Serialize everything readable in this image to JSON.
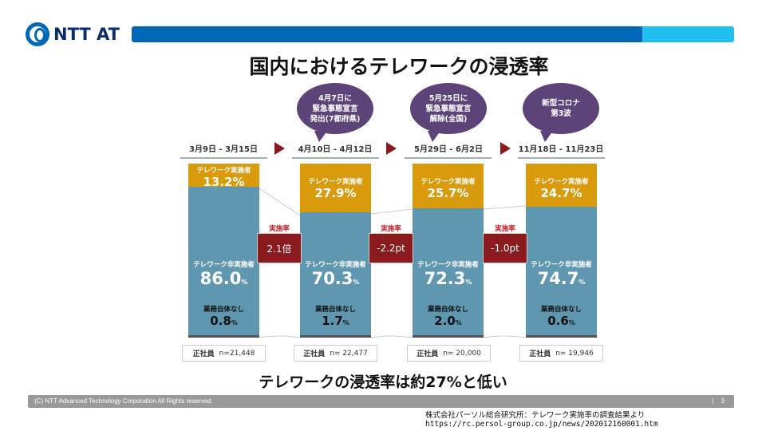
{
  "header": {
    "logo_text": "NTT AT",
    "title": "国内におけるテレワークの浸透率"
  },
  "colors": {
    "brand_blue": "#0068b7",
    "accent_cyan": "#1fc0f0",
    "telework": "#d99a0b",
    "non_telework": "#5f97b0",
    "rate_box": "#8b1a1f",
    "bubble": "#5c4479"
  },
  "periods": [
    {
      "date": "3月9日 - 3月15日",
      "telework_label": "テレワーク実施者",
      "telework": 13.2,
      "telework_text": "13.2%",
      "non_label": "テレワーク非実施者",
      "non": 86.0,
      "non_text": "86.0",
      "none_label": "業務自体なし",
      "none": 0.8,
      "none_text": "0.8",
      "unit": "%",
      "sample_label": "正社員",
      "sample": "n=21,448"
    },
    {
      "date": "4月10日 - 4月12日",
      "telework_label": "テレワーク実施者",
      "telework": 27.9,
      "telework_text": "27.9%",
      "non_label": "テレワーク非実施者",
      "non": 70.3,
      "non_text": "70.3",
      "none_label": "業務自体なし",
      "none": 1.7,
      "none_text": "1.7",
      "unit": "%",
      "sample_label": "正社員",
      "sample": "n= 22,477",
      "bubble": [
        "4月7日に",
        "緊急事態宣言",
        "発出(7都府県)"
      ]
    },
    {
      "date": "5月29日 - 6月2日",
      "telework_label": "テレワーク実施者",
      "telework": 25.7,
      "telework_text": "25.7%",
      "non_label": "テレワーク非実施者",
      "non": 72.3,
      "non_text": "72.3",
      "none_label": "業務自体なし",
      "none": 2.0,
      "none_text": "2.0",
      "unit": "%",
      "sample_label": "正社員",
      "sample": "n= 20,000",
      "bubble": [
        "5月25日に",
        "緊急事態宣言",
        "解除(全国)"
      ]
    },
    {
      "date": "11月18日 - 11月23日",
      "telework_label": "テレワーク実施者",
      "telework": 24.7,
      "telework_text": "24.7%",
      "non_label": "テレワーク非実施者",
      "non": 74.7,
      "non_text": "74.7",
      "none_label": "業務自体なし",
      "none": 0.6,
      "none_text": "0.6",
      "unit": "%",
      "sample_label": "正社員",
      "sample": "n= 19,946",
      "bubble": [
        "新型コロナ",
        "第3波"
      ]
    }
  ],
  "rates": [
    {
      "label": "実施率",
      "value": "2.1倍"
    },
    {
      "label": "実施率",
      "value": "-2.2pt"
    },
    {
      "label": "実施率",
      "value": "-1.0pt"
    }
  ],
  "subtitle": "テレワークの浸透率は約27%と低い",
  "footer": {
    "copyright": "(C) NTT Advanced Technology Corporation All Rights reserved.",
    "page_sep": "|",
    "page": "3"
  },
  "source": {
    "line1": "株式会社パーソル総合研究所：テレワーク実施率の調査結果より",
    "line2": "https://rc.persol-group.co.jp/news/202012160001.htm"
  }
}
